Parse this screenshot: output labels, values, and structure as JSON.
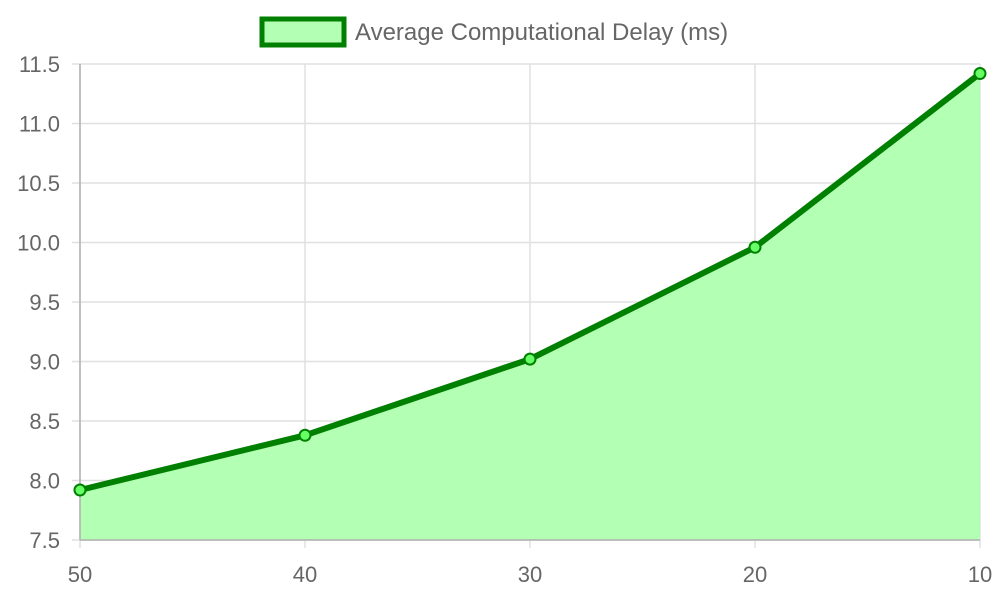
{
  "chart_data": {
    "type": "area",
    "categories": [
      "50",
      "40",
      "30",
      "20",
      "10"
    ],
    "series": [
      {
        "name": "Average Computational Delay (ms)",
        "values": [
          7.92,
          8.38,
          9.02,
          9.96,
          11.42
        ]
      }
    ],
    "y_ticks": [
      "7.5",
      "8.0",
      "8.5",
      "9.0",
      "9.5",
      "10.0",
      "10.5",
      "11.0",
      "11.5"
    ],
    "ylim": [
      7.5,
      11.5
    ],
    "grid": true,
    "legend_position": "top-center",
    "colors": {
      "line": "#008000",
      "fill": "#b3ffb3",
      "point_fill": "#66ff66"
    }
  }
}
